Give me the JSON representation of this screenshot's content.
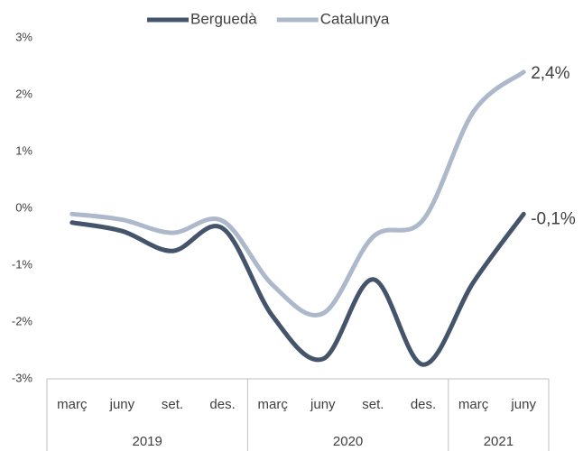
{
  "chart_data": {
    "type": "line",
    "categories": [
      "març",
      "juny",
      "set.",
      "des.",
      "març",
      "juny",
      "set.",
      "des.",
      "març",
      "juny"
    ],
    "x_groups": [
      {
        "label": "2019",
        "count": 4
      },
      {
        "label": "2020",
        "count": 4
      },
      {
        "label": "2021",
        "count": 2
      }
    ],
    "series": [
      {
        "name": "Berguedà",
        "color": "#44546a",
        "values": [
          -0.25,
          -0.4,
          -0.75,
          -0.35,
          -1.9,
          -2.65,
          -1.25,
          -2.75,
          -1.3,
          -0.1
        ],
        "value_labels": [
          null,
          null,
          null,
          null,
          null,
          null,
          null,
          null,
          null,
          "-0,1%"
        ]
      },
      {
        "name": "Catalunya",
        "color": "#adb9ca",
        "values": [
          -0.1,
          -0.2,
          -0.43,
          -0.22,
          -1.35,
          -1.85,
          -0.5,
          -0.2,
          1.7,
          2.4
        ],
        "value_labels": [
          null,
          null,
          null,
          null,
          null,
          null,
          null,
          null,
          null,
          "2,4%"
        ]
      }
    ],
    "ylim": [
      -3,
      3
    ],
    "yticks": [
      {
        "value": -3,
        "label": "-3%"
      },
      {
        "value": -2,
        "label": "-2%"
      },
      {
        "value": -1,
        "label": "-1%"
      },
      {
        "value": 0,
        "label": "0%"
      },
      {
        "value": 1,
        "label": "1%"
      },
      {
        "value": 2,
        "label": "2%"
      },
      {
        "value": 3,
        "label": "3%"
      }
    ],
    "grid": false,
    "smooth": true,
    "legend": "top"
  }
}
